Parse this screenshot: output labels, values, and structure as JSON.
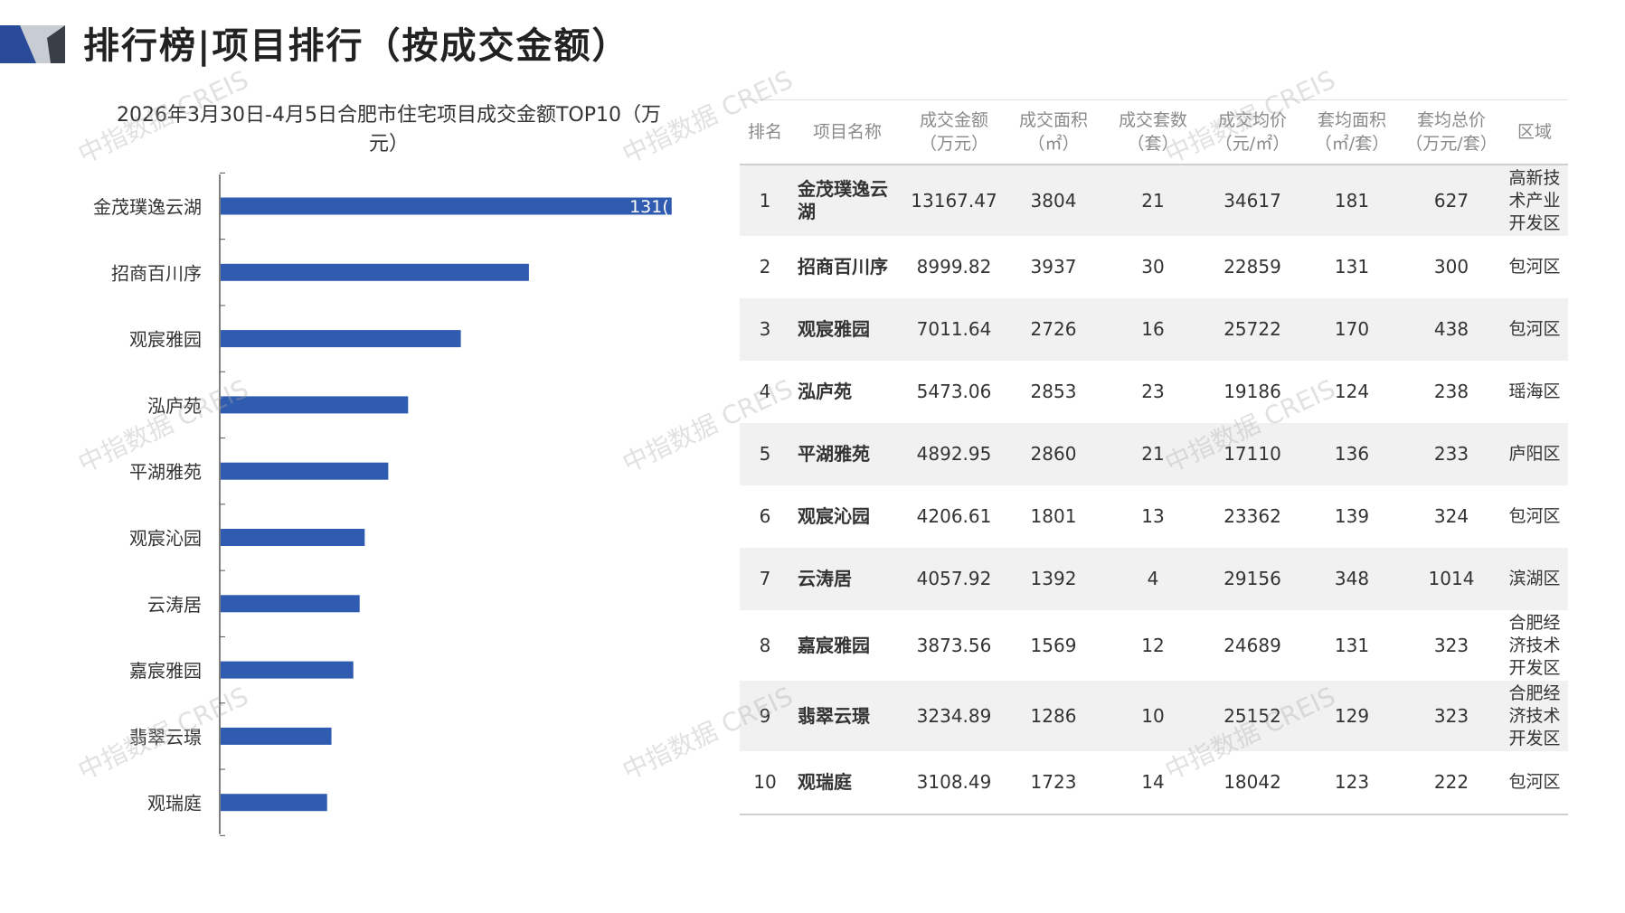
{
  "page": {
    "title": "排行榜|项目排行（按成交金额）"
  },
  "colors": {
    "bar": "#2f5cb0",
    "accent_dark": "#2a4a9a",
    "accent_light": "#a9aeb8"
  },
  "chart_data": {
    "type": "bar",
    "orientation": "horizontal",
    "title_lines": [
      "2026年3月30日-4月5日合肥市住宅项目成交金额TOP10（万",
      "元）"
    ],
    "categories": [
      "金茂璞逸云湖",
      "招商百川序",
      "观宸雅园",
      "泓庐苑",
      "平湖雅苑",
      "观宸沁园",
      "云涛居",
      "嘉宸雅园",
      "翡翠云璟",
      "观瑞庭"
    ],
    "values": [
      13167.47,
      8999.82,
      7011.64,
      5473.06,
      4892.95,
      4206.61,
      4057.92,
      3873.56,
      3234.89,
      3108.49
    ],
    "data_labels": [
      "131(",
      "",
      "",
      "",
      "",
      "",
      "",
      "",
      "",
      ""
    ],
    "xlim": [
      0,
      13200
    ],
    "grid": false,
    "legend": "none"
  },
  "table": {
    "headers": [
      [
        "排名"
      ],
      [
        "项目名称"
      ],
      [
        "成交金额",
        "（万元）"
      ],
      [
        "成交面积",
        "（㎡）"
      ],
      [
        "成交套数",
        "（套）"
      ],
      [
        "成交均价",
        "（元/㎡）"
      ],
      [
        "套均面积",
        "（㎡/套）"
      ],
      [
        "套均总价",
        "（万元/套）"
      ],
      [
        "区域"
      ]
    ],
    "rows": [
      [
        "1",
        "金茂璞逸云湖",
        "13167.47",
        "3804",
        "21",
        "34617",
        "181",
        "627",
        "高新技术产业开发区"
      ],
      [
        "2",
        "招商百川序",
        "8999.82",
        "3937",
        "30",
        "22859",
        "131",
        "300",
        "包河区"
      ],
      [
        "3",
        "观宸雅园",
        "7011.64",
        "2726",
        "16",
        "25722",
        "170",
        "438",
        "包河区"
      ],
      [
        "4",
        "泓庐苑",
        "5473.06",
        "2853",
        "23",
        "19186",
        "124",
        "238",
        "瑶海区"
      ],
      [
        "5",
        "平湖雅苑",
        "4892.95",
        "2860",
        "21",
        "17110",
        "136",
        "233",
        "庐阳区"
      ],
      [
        "6",
        "观宸沁园",
        "4206.61",
        "1801",
        "13",
        "23362",
        "139",
        "324",
        "包河区"
      ],
      [
        "7",
        "云涛居",
        "4057.92",
        "1392",
        "4",
        "29156",
        "348",
        "1014",
        "滨湖区"
      ],
      [
        "8",
        "嘉宸雅园",
        "3873.56",
        "1569",
        "12",
        "24689",
        "131",
        "323",
        "合肥经济技术开发区"
      ],
      [
        "9",
        "翡翠云璟",
        "3234.89",
        "1286",
        "10",
        "25152",
        "129",
        "323",
        "合肥经济技术开发区"
      ],
      [
        "10",
        "观瑞庭",
        "3108.49",
        "1723",
        "14",
        "18042",
        "123",
        "222",
        "包河区"
      ]
    ]
  },
  "watermark": {
    "text": "中指数据 CREIS"
  }
}
